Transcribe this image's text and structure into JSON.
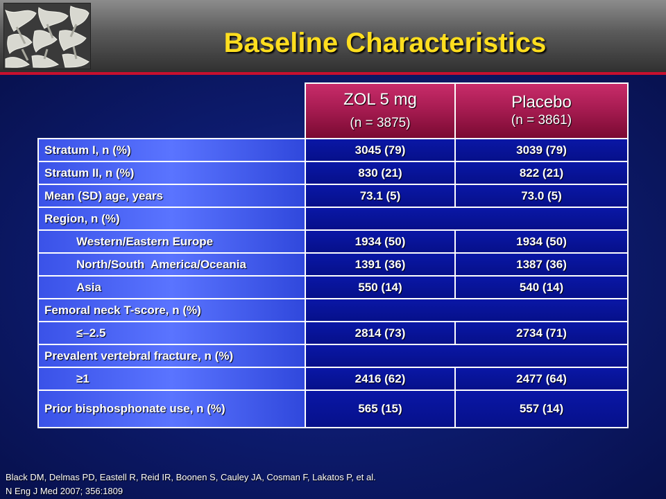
{
  "title": "Baseline Characteristics",
  "header": {
    "col1_main": "ZOL 5 mg",
    "col1_sub": "(n = 3875)",
    "col2_main": "Placebo",
    "col2_sub": "(n = 3861)"
  },
  "rows": [
    {
      "label": "Stratum I, n (%)",
      "zol": "3045 (79)",
      "placebo": "3039 (79)"
    },
    {
      "label": "Stratum II, n (%)",
      "zol": "830 (21)",
      "placebo": "822 (21)"
    },
    {
      "label": "Mean (SD) age, years",
      "zol": "73.1 (5)",
      "placebo": "73.0 (5)"
    },
    {
      "label": "Region, n (%)"
    },
    {
      "label": "Western/Eastern Europe",
      "zol": "1934 (50)",
      "placebo": "1934 (50)"
    },
    {
      "label": "North/South  America/Oceania",
      "zol": "1391 (36)",
      "placebo": "1387 (36)"
    },
    {
      "label": "Asia",
      "zol": "550 (14)",
      "placebo": "540 (14)"
    },
    {
      "label": "Femoral neck T-score, n (%)"
    },
    {
      "label": "≤–2.5",
      "zol": "2814 (73)",
      "placebo": "2734 (71)"
    },
    {
      "label": "Prevalent vertebral fracture, n (%)"
    },
    {
      "label": "≥1",
      "zol": "2416 (62)",
      "placebo": "2477 (64)"
    },
    {
      "label": "Prior bisphosphonate use, n (%)",
      "zol": "565 (15)",
      "placebo": "557 (14)"
    }
  ],
  "footnote": {
    "line1": "Black DM, Delmas PD, Eastell R, Reid IR, Boonen S, Cauley JA, Cosman F, Lakatos P, et al.",
    "line2": "N Eng J Med 2007; 356:1809"
  },
  "colors": {
    "title": "#ffde1f",
    "accent_red": "#c8102e",
    "header_magenta": "#a81c52",
    "label_blue": "#4a62f4",
    "value_blue": "#08129a"
  },
  "logo_icon": "bone-trabecular-image"
}
